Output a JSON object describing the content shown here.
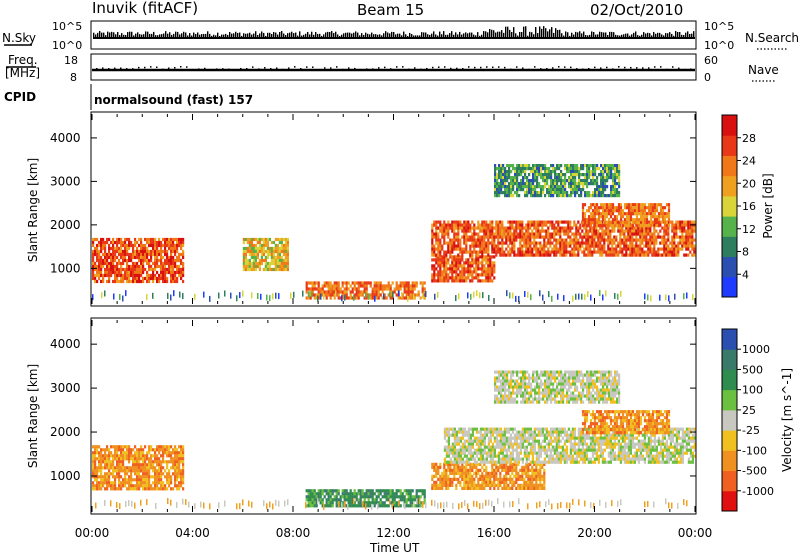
{
  "header": {
    "station": "Inuvik (fitACF)",
    "beam": "Beam 15",
    "date": "02/Oct/2010"
  },
  "noise_panel": {
    "left_label": "N.Sky",
    "right_label": "N.Search",
    "left_ticks": [
      "10^5",
      "10^0"
    ],
    "right_ticks": [
      "10^5",
      "10^0"
    ]
  },
  "freq_panel": {
    "left_label": "Freq.",
    "left_units": "[MHz]",
    "right_label": "Nave",
    "left_ticks": [
      "18",
      "8"
    ],
    "right_ticks": [
      "60",
      "0"
    ]
  },
  "cpid_panel": {
    "label": "CPID",
    "program": "normalsound (fast) 157"
  },
  "axes": {
    "ylabel": "Slant Range [km]",
    "xlabel": "Time UT",
    "x_ticks": [
      "00:00",
      "04:00",
      "08:00",
      "12:00",
      "16:00",
      "20:00",
      "00:00"
    ],
    "y_ticks": [
      "1000",
      "2000",
      "3000",
      "4000"
    ]
  },
  "power_colorbar": {
    "label": "Power [dB]",
    "ticks": [
      "4",
      "8",
      "12",
      "16",
      "20",
      "24",
      "28"
    ],
    "colors": [
      "#1f3bff",
      "#2a4fb0",
      "#2e7d5e",
      "#56b24a",
      "#d8d43a",
      "#f0a020",
      "#f07818",
      "#e83818",
      "#d81010"
    ]
  },
  "velocity_colorbar": {
    "label": "Velocity [m s^-1]",
    "ticks": [
      "1000",
      "500",
      "100",
      "25",
      "-25",
      "-100",
      "-500",
      "-1000"
    ],
    "colors": [
      "#2a4fb0",
      "#3a7a6a",
      "#2e8c4e",
      "#6cc040",
      "#c8c8c0",
      "#f0c020",
      "#f09020",
      "#f06020",
      "#e01010"
    ]
  },
  "chart_data": {
    "type": "heatmap",
    "title": "Inuvik (fitACF)  Beam 15  02/Oct/2010",
    "xlabel": "Time UT",
    "ylabel": "Slant Range [km]",
    "xlim": [
      0,
      24
    ],
    "ylim": [
      180,
      4550
    ],
    "power_regions": [
      {
        "t0": 0.0,
        "t1": 3.6,
        "r0": 700,
        "r1": 1700,
        "power_db": 27
      },
      {
        "t0": 6.0,
        "t1": 7.8,
        "r0": 1000,
        "r1": 1700,
        "power_db": 18
      },
      {
        "t0": 8.5,
        "t1": 13.2,
        "r0": 300,
        "r1": 700,
        "power_db": 24
      },
      {
        "t0": 13.5,
        "t1": 16.0,
        "r0": 700,
        "r1": 1300,
        "power_db": 26
      },
      {
        "t0": 13.5,
        "t1": 24.0,
        "r0": 1300,
        "r1": 2100,
        "power_db": 26
      },
      {
        "t0": 19.5,
        "t1": 23.0,
        "r0": 2000,
        "r1": 2500,
        "power_db": 24
      },
      {
        "t0": 16.0,
        "t1": 21.0,
        "r0": 2700,
        "r1": 3400,
        "power_db": 10
      }
    ],
    "velocity_regions": [
      {
        "t0": 0.0,
        "t1": 3.6,
        "r0": 700,
        "r1": 1700,
        "velocity": -300
      },
      {
        "t0": 8.5,
        "t1": 13.2,
        "r0": 300,
        "r1": 700,
        "velocity": 150
      },
      {
        "t0": 13.5,
        "t1": 18.0,
        "r0": 700,
        "r1": 1300,
        "velocity": -300
      },
      {
        "t0": 14.0,
        "t1": 24.0,
        "r0": 1300,
        "r1": 2100,
        "velocity": 0
      },
      {
        "t0": 19.5,
        "t1": 23.0,
        "r0": 2000,
        "r1": 2500,
        "velocity": -300
      },
      {
        "t0": 16.0,
        "t1": 21.0,
        "r0": 2700,
        "r1": 3400,
        "velocity": 0
      }
    ]
  }
}
